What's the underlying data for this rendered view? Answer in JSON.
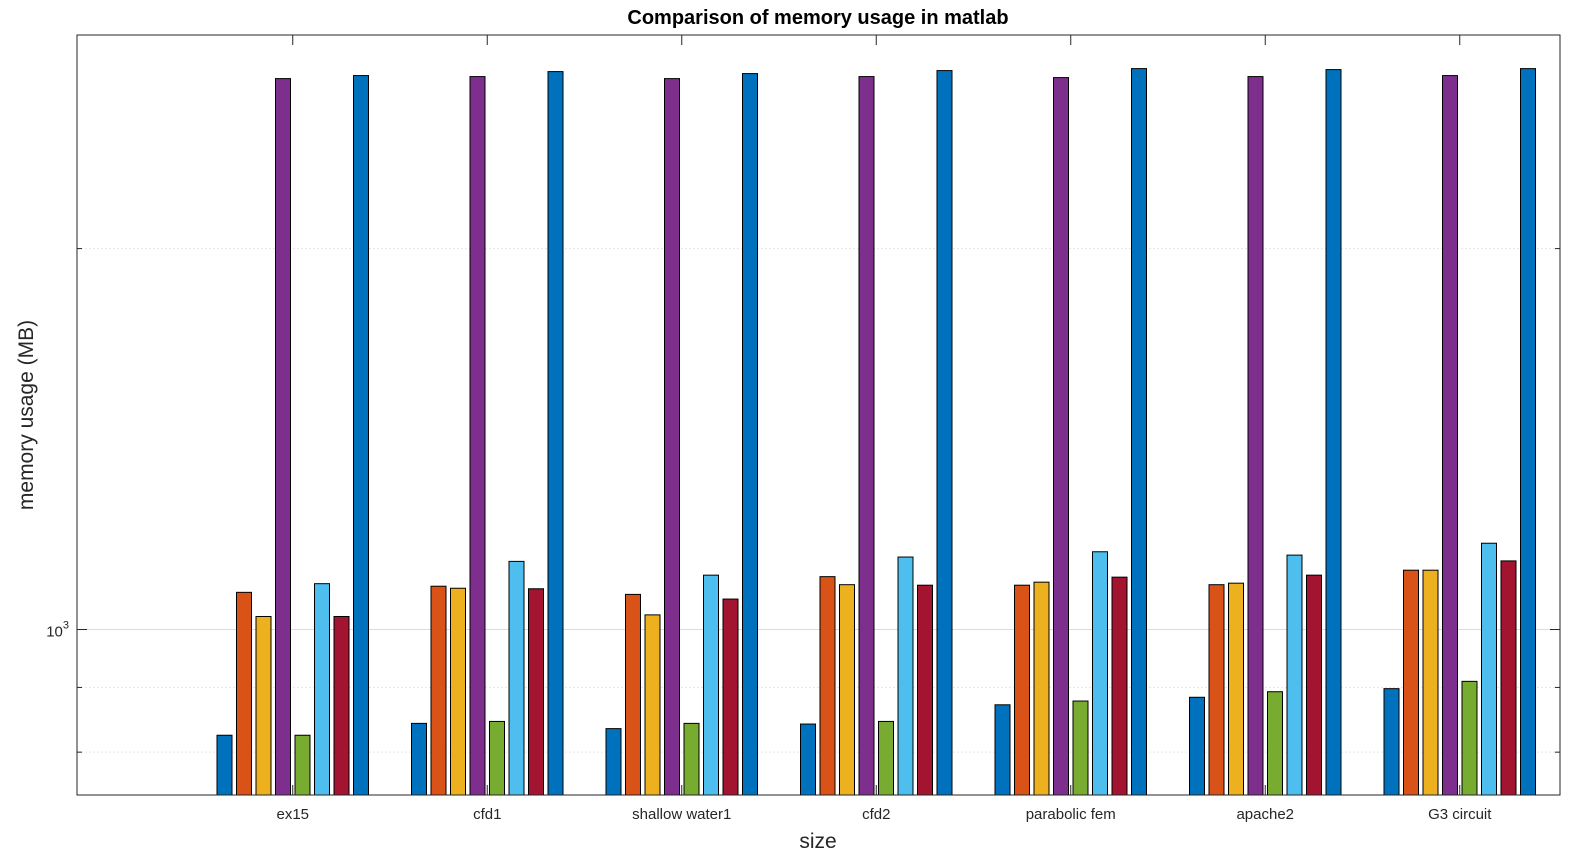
{
  "chart_data": {
    "type": "bar",
    "title": "Comparison of memory usage in matlab",
    "xlabel": "size",
    "ylabel": "memory usage (MB)",
    "yscale": "log",
    "ylim": [
      740,
      2950
    ],
    "ytick_labels": [
      {
        "base": "10",
        "exp": "3",
        "value": 1000
      }
    ],
    "grid": true,
    "legend": "none",
    "categories": [
      "ex15",
      "cfd1",
      "shallow water1",
      "cfd2",
      "parabolic fem",
      "apache2",
      "G3 circuit"
    ],
    "series": [
      {
        "color": "#0072BD",
        "values": [
          825,
          843,
          835,
          842,
          872,
          884,
          898
        ]
      },
      {
        "color": "#D95319",
        "values": [
          1070,
          1082,
          1066,
          1101,
          1084,
          1085,
          1114
        ]
      },
      {
        "color": "#EDB120",
        "values": [
          1024,
          1078,
          1027,
          1085,
          1090,
          1088,
          1114
        ]
      },
      {
        "color": "#7E2F8E",
        "values": [
          2725,
          2735,
          2725,
          2735,
          2730,
          2735,
          2740
        ]
      },
      {
        "color": "#77AC30",
        "values": [
          825,
          846,
          843,
          846,
          878,
          893,
          910
        ]
      },
      {
        "color": "#4DBEEE",
        "values": [
          1087,
          1132,
          1104,
          1141,
          1152,
          1145,
          1170
        ]
      },
      {
        "color": "#A2142F",
        "values": [
          1024,
          1077,
          1057,
          1084,
          1100,
          1104,
          1133
        ]
      },
      {
        "color": "#0072BD",
        "values": [
          2740,
          2760,
          2750,
          2765,
          2775,
          2770,
          2775
        ]
      }
    ]
  }
}
